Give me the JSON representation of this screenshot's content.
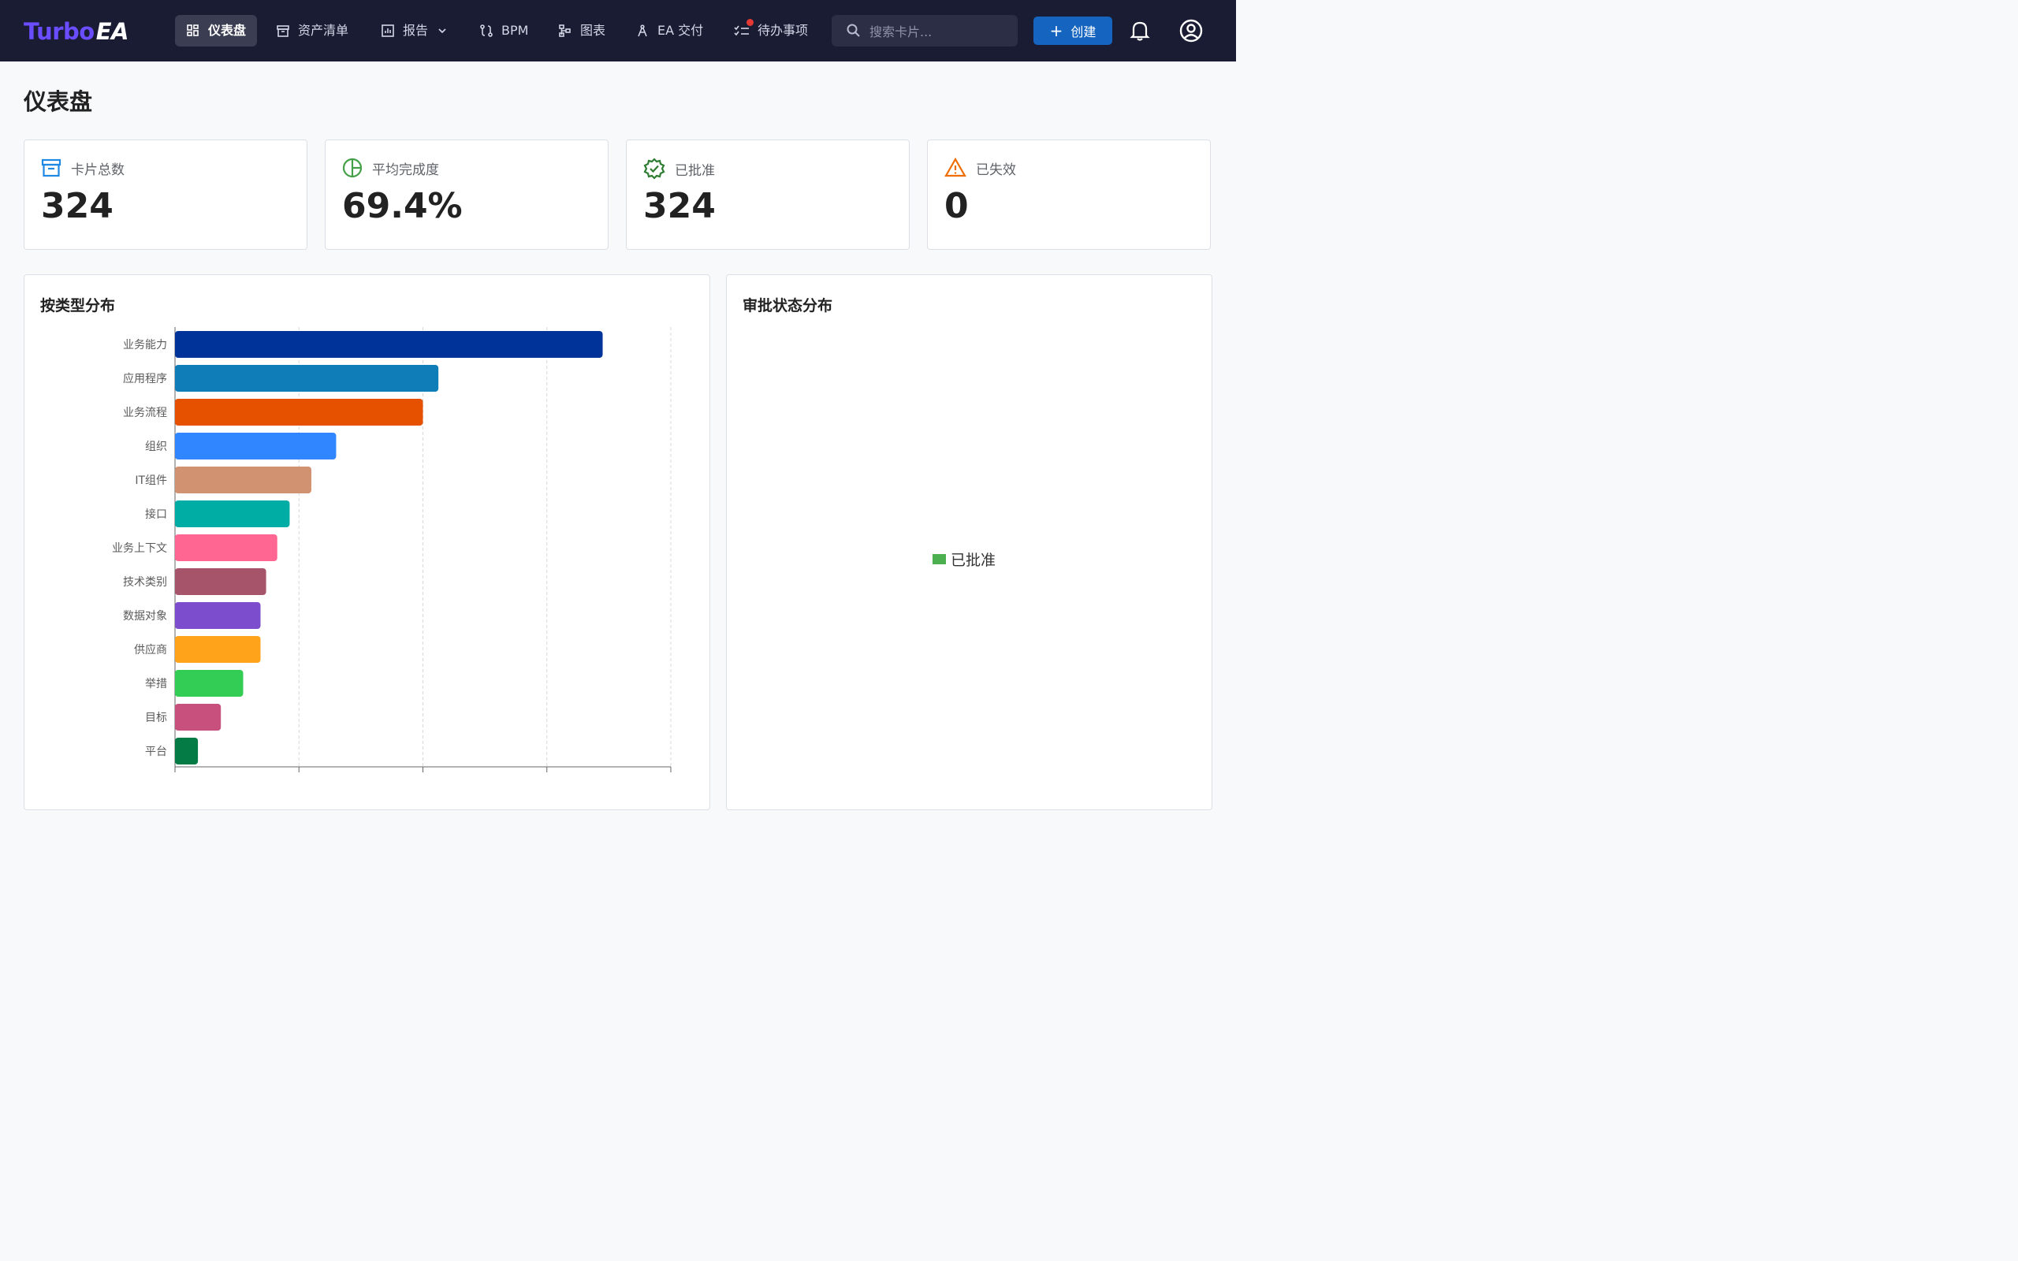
{
  "header": {
    "logo_turbo": "Turbo",
    "logo_ea": "EA",
    "nav": [
      {
        "label": "仪表盘",
        "icon": "dashboard-icon"
      },
      {
        "label": "资产清单",
        "icon": "inventory-icon"
      },
      {
        "label": "报告",
        "icon": "report-icon"
      },
      {
        "label": "BPM",
        "icon": "bpm-icon"
      },
      {
        "label": "图表",
        "icon": "diagram-icon"
      },
      {
        "label": "EA 交付",
        "icon": "delivery-icon"
      },
      {
        "label": "待办事项",
        "icon": "todo-icon"
      }
    ],
    "search_placeholder": "搜索卡片...",
    "create_label": "创建"
  },
  "page": {
    "title": "仪表盘"
  },
  "stats": [
    {
      "label": "卡片总数",
      "value": "324",
      "icon": "archive-icon",
      "color": "#1e88e5"
    },
    {
      "label": "平均完成度",
      "value": "69.4%",
      "icon": "pie-icon",
      "color": "#43a047"
    },
    {
      "label": "已批准",
      "value": "324",
      "icon": "verified-icon",
      "color": "#2e7d32"
    },
    {
      "label": "已失效",
      "value": "0",
      "icon": "warning-icon",
      "color": "#ef6c00"
    }
  ],
  "type_panel": {
    "title": "按类型分布"
  },
  "status_panel": {
    "title": "审批状态分布",
    "legend": "已批准"
  },
  "chart_data": {
    "type": "bar",
    "orientation": "horizontal",
    "categories": [
      "业务能力",
      "应用程序",
      "业务流程",
      "组织",
      "IT组件",
      "接口",
      "业务上下文",
      "技术类别",
      "数据对象",
      "供应商",
      "举措",
      "目标",
      "平台"
    ],
    "values": [
      69,
      42.5,
      40,
      26,
      22,
      18.5,
      16.5,
      14.7,
      13.8,
      13.8,
      11,
      7.4,
      3.7
    ],
    "colors": [
      "#003399",
      "#0f7db8",
      "#e65100",
      "#2f86ff",
      "#d19271",
      "#00ada5",
      "#ff6691",
      "#a6546a",
      "#7c4dcc",
      "#ffa31a",
      "#33cc55",
      "#c7507d",
      "#047a45"
    ],
    "xlim": [
      0,
      80
    ],
    "grid": true,
    "legend": false
  }
}
